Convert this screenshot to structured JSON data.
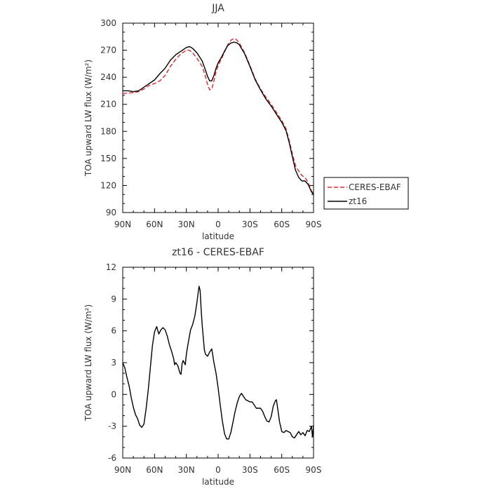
{
  "chart_data": [
    {
      "type": "line",
      "title": "JJA",
      "xlabel": "latitude",
      "ylabel": "TOA upward LW flux (W/m²)",
      "x_direction": "north-to-south",
      "xlim": [
        90,
        -90
      ],
      "ylim": [
        90,
        300
      ],
      "xticks": [
        90,
        60,
        30,
        0,
        -30,
        -60,
        -90
      ],
      "xtick_labels": [
        "90N",
        "60N",
        "30N",
        "0",
        "30S",
        "60S",
        "90S"
      ],
      "yticks": [
        90,
        120,
        150,
        180,
        210,
        240,
        270,
        300
      ],
      "ytick_labels": [
        "90",
        "120",
        "150",
        "180",
        "210",
        "240",
        "270",
        "300"
      ],
      "legend_position": "right",
      "series": [
        {
          "name": "CERES-EBAF",
          "color": "#e8232a",
          "dash": "dashed",
          "points": [
            [
              90,
              222
            ],
            [
              80,
              223
            ],
            [
              75,
              224
            ],
            [
              70,
              227
            ],
            [
              65,
              231
            ],
            [
              60,
              233
            ],
            [
              55,
              236
            ],
            [
              50,
              242
            ],
            [
              45,
              252
            ],
            [
              40,
              260
            ],
            [
              35,
              266
            ],
            [
              30,
              270
            ],
            [
              27,
              270
            ],
            [
              24,
              267
            ],
            [
              20,
              261
            ],
            [
              15,
              252
            ],
            [
              12,
              241
            ],
            [
              10,
              232
            ],
            [
              8,
              226
            ],
            [
              6,
              227
            ],
            [
              4,
              236
            ],
            [
              2,
              246
            ],
            [
              0,
              253
            ],
            [
              -3,
              260
            ],
            [
              -6,
              268
            ],
            [
              -9,
              276
            ],
            [
              -12,
              281
            ],
            [
              -15,
              283
            ],
            [
              -17,
              282
            ],
            [
              -20,
              278
            ],
            [
              -25,
              267
            ],
            [
              -30,
              253
            ],
            [
              -35,
              238
            ],
            [
              -40,
              227
            ],
            [
              -45,
              218
            ],
            [
              -50,
              210
            ],
            [
              -55,
              201
            ],
            [
              -60,
              192
            ],
            [
              -64,
              183
            ],
            [
              -67,
              170
            ],
            [
              -70,
              155
            ],
            [
              -73,
              142
            ],
            [
              -76,
              136
            ],
            [
              -79,
              131
            ],
            [
              -82,
              129
            ],
            [
              -85,
              123
            ],
            [
              -88,
              114
            ],
            [
              -90,
              111
            ]
          ]
        },
        {
          "name": "zt16",
          "color": "#000000",
          "dash": "solid",
          "points": [
            [
              90,
              225
            ],
            [
              85,
              225
            ],
            [
              80,
              224
            ],
            [
              75,
              225
            ],
            [
              70,
              229
            ],
            [
              65,
              233
            ],
            [
              60,
              237
            ],
            [
              55,
              244
            ],
            [
              50,
              250
            ],
            [
              45,
              259
            ],
            [
              40,
              265
            ],
            [
              35,
              269
            ],
            [
              30,
              273
            ],
            [
              27,
              274
            ],
            [
              24,
              272
            ],
            [
              20,
              267
            ],
            [
              15,
              258
            ],
            [
              12,
              248
            ],
            [
              10,
              241
            ],
            [
              8,
              236
            ],
            [
              6,
              236
            ],
            [
              4,
              242
            ],
            [
              2,
              250
            ],
            [
              0,
              256
            ],
            [
              -3,
              262
            ],
            [
              -6,
              269
            ],
            [
              -9,
              275
            ],
            [
              -12,
              278
            ],
            [
              -15,
              279
            ],
            [
              -18,
              278
            ],
            [
              -20,
              276
            ],
            [
              -25,
              266
            ],
            [
              -30,
              252
            ],
            [
              -35,
              237
            ],
            [
              -40,
              226
            ],
            [
              -45,
              216
            ],
            [
              -50,
              208
            ],
            [
              -55,
              199
            ],
            [
              -60,
              190
            ],
            [
              -64,
              181
            ],
            [
              -67,
              168
            ],
            [
              -70,
              152
            ],
            [
              -73,
              137
            ],
            [
              -76,
              129
            ],
            [
              -79,
              125
            ],
            [
              -82,
              125
            ],
            [
              -85,
              121
            ],
            [
              -88,
              113
            ],
            [
              -90,
              110
            ]
          ]
        }
      ]
    },
    {
      "type": "line",
      "title": "zt16 - CERES-EBAF",
      "xlabel": "latitude",
      "ylabel": "TOA upward LW flux (W/m²)",
      "x_direction": "north-to-south",
      "xlim": [
        90,
        -90
      ],
      "ylim": [
        -6,
        12
      ],
      "xticks": [
        90,
        60,
        30,
        0,
        -30,
        -60,
        -90
      ],
      "xtick_labels": [
        "90N",
        "60N",
        "30N",
        "0",
        "30S",
        "60S",
        "90S"
      ],
      "yticks": [
        -6,
        -3,
        0,
        3,
        6,
        9,
        12
      ],
      "ytick_labels": [
        "-6",
        "-3",
        "0",
        "3",
        "6",
        "9",
        "12"
      ],
      "series": [
        {
          "color": "#000000",
          "dash": "solid",
          "points": [
            [
              90,
              3.0
            ],
            [
              88,
              2.5
            ],
            [
              86,
              1.6
            ],
            [
              84,
              0.8
            ],
            [
              82,
              -0.3
            ],
            [
              80,
              -1.2
            ],
            [
              78,
              -1.9
            ],
            [
              76,
              -2.3
            ],
            [
              74,
              -2.9
            ],
            [
              72,
              -3.1
            ],
            [
              70,
              -2.8
            ],
            [
              68,
              -1.4
            ],
            [
              66,
              0.4
            ],
            [
              64,
              2.5
            ],
            [
              62,
              4.6
            ],
            [
              60,
              5.9
            ],
            [
              58,
              6.4
            ],
            [
              56,
              5.7
            ],
            [
              54,
              6.1
            ],
            [
              52,
              6.3
            ],
            [
              50,
              6.1
            ],
            [
              48,
              5.5
            ],
            [
              46,
              4.7
            ],
            [
              44,
              4.1
            ],
            [
              42,
              3.4
            ],
            [
              41,
              2.8
            ],
            [
              40,
              3.0
            ],
            [
              38,
              2.7
            ],
            [
              36,
              2.0
            ],
            [
              35,
              1.9
            ],
            [
              34,
              2.9
            ],
            [
              33,
              3.2
            ],
            [
              31,
              2.8
            ],
            [
              30,
              3.8
            ],
            [
              28,
              5.0
            ],
            [
              26,
              6.1
            ],
            [
              24,
              6.6
            ],
            [
              22,
              7.4
            ],
            [
              20,
              8.7
            ],
            [
              19,
              9.5
            ],
            [
              18,
              10.2
            ],
            [
              17,
              9.8
            ],
            [
              16,
              8.0
            ],
            [
              15,
              6.5
            ],
            [
              13,
              4.2
            ],
            [
              12,
              3.8
            ],
            [
              10,
              3.6
            ],
            [
              8,
              4.0
            ],
            [
              6,
              4.3
            ],
            [
              4,
              3.0
            ],
            [
              2,
              2.0
            ],
            [
              1,
              1.3
            ],
            [
              0,
              0.6
            ],
            [
              -2,
              -1.0
            ],
            [
              -4,
              -2.5
            ],
            [
              -6,
              -3.7
            ],
            [
              -8,
              -4.2
            ],
            [
              -10,
              -4.2
            ],
            [
              -12,
              -3.6
            ],
            [
              -14,
              -2.6
            ],
            [
              -16,
              -1.6
            ],
            [
              -18,
              -0.8
            ],
            [
              -20,
              -0.2
            ],
            [
              -22,
              0.1
            ],
            [
              -24,
              -0.2
            ],
            [
              -26,
              -0.5
            ],
            [
              -28,
              -0.6
            ],
            [
              -30,
              -0.7
            ],
            [
              -32,
              -0.7
            ],
            [
              -34,
              -1.0
            ],
            [
              -36,
              -1.3
            ],
            [
              -38,
              -1.3
            ],
            [
              -40,
              -1.3
            ],
            [
              -42,
              -1.6
            ],
            [
              -44,
              -2.1
            ],
            [
              -46,
              -2.5
            ],
            [
              -48,
              -2.6
            ],
            [
              -50,
              -2.1
            ],
            [
              -52,
              -1.1
            ],
            [
              -54,
              -0.6
            ],
            [
              -55,
              -0.5
            ],
            [
              -56,
              -1.2
            ],
            [
              -58,
              -2.6
            ],
            [
              -60,
              -3.5
            ],
            [
              -62,
              -3.6
            ],
            [
              -64,
              -3.4
            ],
            [
              -66,
              -3.5
            ],
            [
              -68,
              -3.6
            ],
            [
              -70,
              -4.0
            ],
            [
              -72,
              -4.1
            ],
            [
              -74,
              -3.8
            ],
            [
              -76,
              -3.5
            ],
            [
              -78,
              -3.8
            ],
            [
              -80,
              -3.6
            ],
            [
              -82,
              -3.9
            ],
            [
              -84,
              -3.4
            ],
            [
              -86,
              -3.5
            ],
            [
              -88,
              -3.0
            ],
            [
              -89,
              -4.0
            ],
            [
              -90,
              -2.9
            ]
          ]
        }
      ]
    }
  ]
}
